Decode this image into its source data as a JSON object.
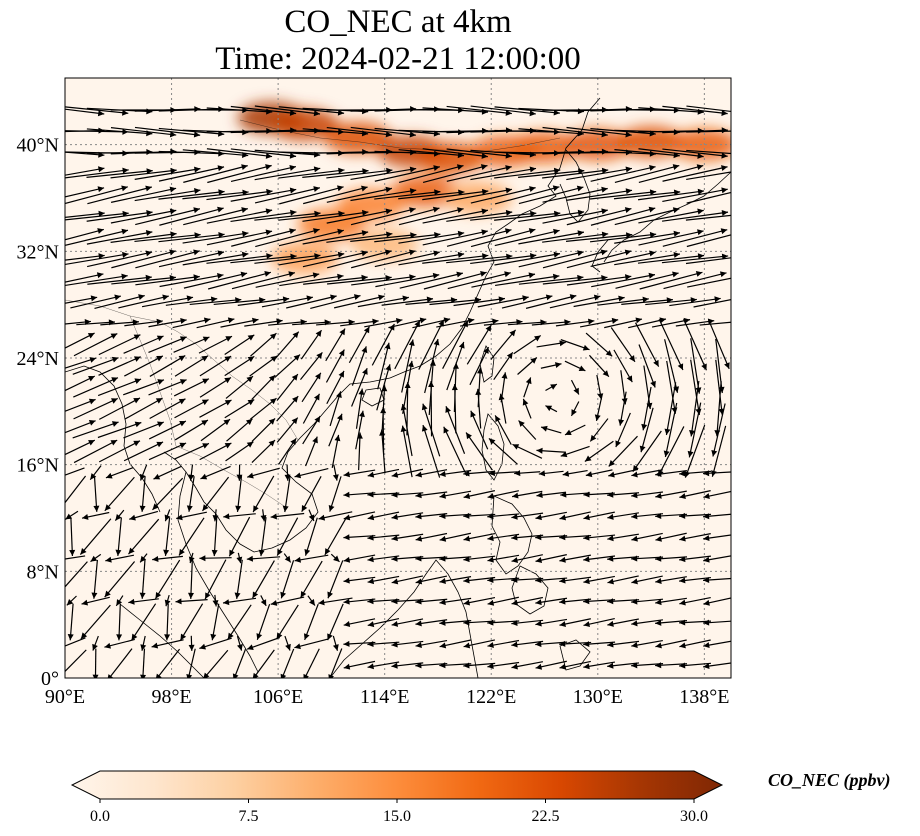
{
  "title": {
    "line1": "CO_NEC at 4km",
    "line2": "Time: 2024-02-21 12:00:00"
  },
  "map": {
    "lon_range": [
      90,
      140
    ],
    "lat_range": [
      0,
      45
    ],
    "lon_ticks": [
      {
        "value": 90,
        "label": "90°E"
      },
      {
        "value": 98,
        "label": "98°E"
      },
      {
        "value": 106,
        "label": "106°E"
      },
      {
        "value": 114,
        "label": "114°E"
      },
      {
        "value": 122,
        "label": "122°E"
      },
      {
        "value": 130,
        "label": "130°E"
      },
      {
        "value": 138,
        "label": "138°E"
      }
    ],
    "lat_ticks": [
      {
        "value": 0,
        "label": "0°"
      },
      {
        "value": 8,
        "label": "8°N"
      },
      {
        "value": 16,
        "label": "16°N"
      },
      {
        "value": 24,
        "label": "24°N"
      },
      {
        "value": 32,
        "label": "32°N"
      },
      {
        "value": 40,
        "label": "40°N"
      }
    ],
    "gridlines": true,
    "background_color": "#fff5eb",
    "wind_vectors": true,
    "anticyclone_center_lon_lat": [
      127,
      21
    ],
    "plume": [
      {
        "lon": 105.5,
        "lat": 42.0,
        "value": 26
      },
      {
        "lon": 108.0,
        "lat": 41.5,
        "value": 24
      },
      {
        "lon": 112.0,
        "lat": 40.5,
        "value": 22
      },
      {
        "lon": 116.0,
        "lat": 39.5,
        "value": 24
      },
      {
        "lon": 119.0,
        "lat": 39.0,
        "value": 22
      },
      {
        "lon": 123.0,
        "lat": 39.5,
        "value": 20
      },
      {
        "lon": 126.0,
        "lat": 39.8,
        "value": 20
      },
      {
        "lon": 130.0,
        "lat": 40.0,
        "value": 21
      },
      {
        "lon": 134.0,
        "lat": 40.2,
        "value": 22
      },
      {
        "lon": 138.0,
        "lat": 40.0,
        "value": 20
      },
      {
        "lon": 117.0,
        "lat": 36.5,
        "value": 20
      },
      {
        "lon": 113.0,
        "lat": 35.5,
        "value": 16
      },
      {
        "lon": 110.0,
        "lat": 34.0,
        "value": 17
      },
      {
        "lon": 108.0,
        "lat": 31.5,
        "value": 13
      },
      {
        "lon": 114.0,
        "lat": 32.5,
        "value": 10
      },
      {
        "lon": 121.0,
        "lat": 36.0,
        "value": 12
      }
    ]
  },
  "colorbar": {
    "label": "CO_NEC (ppbv)",
    "min": 0,
    "max": 30,
    "ticks": [
      {
        "value": 0,
        "label": "0.0"
      },
      {
        "value": 7.5,
        "label": "7.5"
      },
      {
        "value": 15,
        "label": "15.0"
      },
      {
        "value": 22.5,
        "label": "22.5"
      },
      {
        "value": 30,
        "label": "30.0"
      }
    ],
    "colors": [
      "#fff5eb",
      "#fee6ce",
      "#fdd0a2",
      "#fdae6b",
      "#fd8d3c",
      "#f16913",
      "#d94801",
      "#a63603",
      "#7f2704"
    ]
  }
}
